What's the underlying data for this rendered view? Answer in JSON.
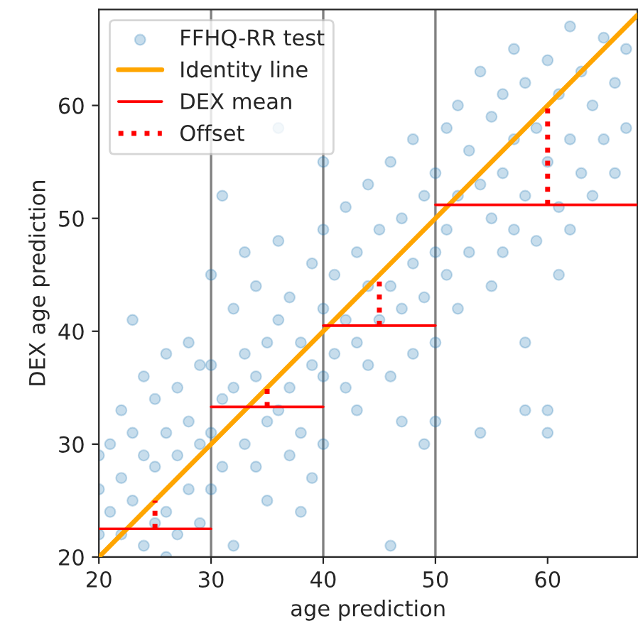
{
  "chart_data": {
    "type": "scatter",
    "xlabel": "age prediction",
    "ylabel": "DEX age prediction",
    "xlim": [
      20,
      68
    ],
    "ylim": [
      20,
      68.5
    ],
    "xticks": [
      20,
      30,
      40,
      50,
      60
    ],
    "yticks": [
      20,
      30,
      40,
      50,
      60
    ],
    "grid": false,
    "legend": "top left",
    "ref_lines": [
      {
        "axis": "x",
        "value": 30,
        "color": "#808080"
      },
      {
        "axis": "x",
        "value": 40,
        "color": "#808080"
      },
      {
        "axis": "x",
        "value": 50,
        "color": "#808080"
      }
    ],
    "series": [
      {
        "name": "FFHQ-RR test",
        "color": "#1f77b4",
        "marker": "circle",
        "x": [
          20,
          20,
          20,
          21,
          21,
          22,
          22,
          22,
          23,
          23,
          23,
          24,
          24,
          24,
          25,
          25,
          25,
          26,
          26,
          26,
          26,
          27,
          27,
          27,
          28,
          28,
          28,
          29,
          29,
          29,
          30,
          30,
          30,
          30,
          31,
          31,
          31,
          32,
          32,
          32,
          33,
          33,
          33,
          34,
          34,
          34,
          35,
          35,
          35,
          36,
          36,
          36,
          36,
          37,
          37,
          37,
          38,
          38,
          38,
          39,
          39,
          39,
          40,
          40,
          40,
          40,
          40,
          41,
          41,
          42,
          42,
          42,
          43,
          43,
          43,
          44,
          44,
          44,
          45,
          45,
          46,
          46,
          46,
          46,
          47,
          47,
          47,
          48,
          48,
          48,
          49,
          49,
          49,
          50,
          50,
          50,
          50,
          51,
          51,
          51,
          52,
          52,
          52,
          53,
          53,
          54,
          54,
          54,
          55,
          55,
          55,
          56,
          56,
          56,
          57,
          57,
          57,
          58,
          58,
          58,
          58,
          59,
          59,
          60,
          60,
          60,
          60,
          61,
          61,
          61,
          62,
          62,
          62,
          63,
          63,
          64,
          64,
          65,
          65,
          66,
          66,
          67,
          67
        ],
        "values": [
          26,
          29,
          22,
          30,
          24,
          33,
          27,
          22,
          41,
          31,
          25,
          29,
          21,
          36,
          34,
          28,
          23,
          38,
          31,
          24,
          20,
          35,
          29,
          22,
          39,
          32,
          26,
          37,
          30,
          23,
          45,
          37,
          31,
          26,
          34,
          28,
          52,
          42,
          35,
          21,
          47,
          38,
          30,
          44,
          36,
          28,
          39,
          32,
          25,
          48,
          41,
          33,
          58,
          43,
          35,
          29,
          39,
          31,
          24,
          46,
          37,
          27,
          49,
          42,
          36,
          30,
          55,
          45,
          38,
          51,
          41,
          35,
          47,
          39,
          33,
          53,
          44,
          37,
          49,
          41,
          55,
          44,
          36,
          21,
          50,
          42,
          32,
          57,
          46,
          38,
          52,
          43,
          30,
          54,
          47,
          39,
          32,
          58,
          49,
          45,
          60,
          52,
          42,
          56,
          47,
          63,
          53,
          31,
          59,
          50,
          44,
          61,
          54,
          47,
          65,
          57,
          49,
          62,
          52,
          39,
          33,
          58,
          48,
          64,
          55,
          31,
          33,
          61,
          51,
          45,
          67,
          57,
          49,
          63,
          54,
          60,
          52,
          66,
          57,
          62,
          54,
          65,
          58
        ]
      },
      {
        "name": "Identity line",
        "type": "line",
        "color": "#ffa500",
        "line_style": "solid",
        "x": [
          20,
          68
        ],
        "values": [
          20,
          68
        ]
      },
      {
        "name": "DEX mean",
        "type": "line",
        "color": "#ff0000",
        "line_style": "solid",
        "x": [
          20,
          30,
          null,
          30,
          40,
          null,
          40,
          50,
          null,
          50,
          68
        ],
        "values": [
          22.5,
          22.5,
          null,
          33.3,
          33.3,
          null,
          40.5,
          40.5,
          null,
          51.2,
          51.2
        ]
      },
      {
        "name": "Offset",
        "type": "line",
        "color": "#ff0000",
        "line_style": "dotted",
        "x": [
          25,
          25,
          null,
          35,
          35,
          null,
          45,
          45,
          null,
          60,
          60
        ],
        "values": [
          22.5,
          25,
          null,
          33.3,
          35,
          null,
          40.5,
          45,
          null,
          51.2,
          60
        ]
      }
    ]
  }
}
